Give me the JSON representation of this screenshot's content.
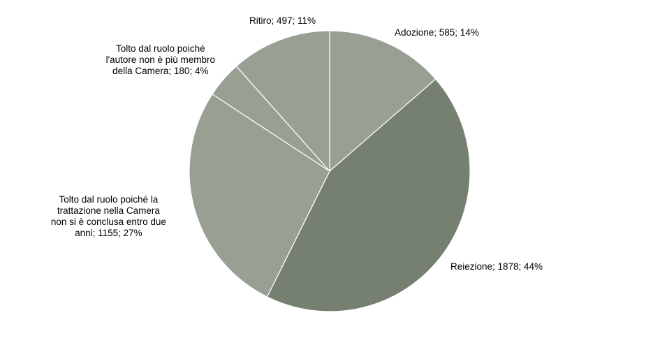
{
  "chart_data": {
    "type": "pie",
    "slices": [
      {
        "label": [
          "Adozione; 585; 14%"
        ],
        "value": 585,
        "percent": 14,
        "color": "#98A094"
      },
      {
        "label": [
          "Reiezione; 1878; 44%"
        ],
        "value": 1878,
        "percent": 44,
        "color": "#758070"
      },
      {
        "label": [
          "Tolto dal ruolo poiché la",
          "trattazione nella Camera",
          "non si è conclusa entro due",
          "anni; 1155; 27%"
        ],
        "value": 1155,
        "percent": 27,
        "color": "#98A094"
      },
      {
        "label": [
          "Tolto dal ruolo poiché",
          "l'autore non è più membro",
          "della Camera; 180; 4%"
        ],
        "value": 180,
        "percent": 4,
        "color": "#98A094"
      },
      {
        "label": [
          "Ritiro; 497; 11%"
        ],
        "value": 497,
        "percent": 11,
        "color": "#98A094"
      }
    ]
  }
}
